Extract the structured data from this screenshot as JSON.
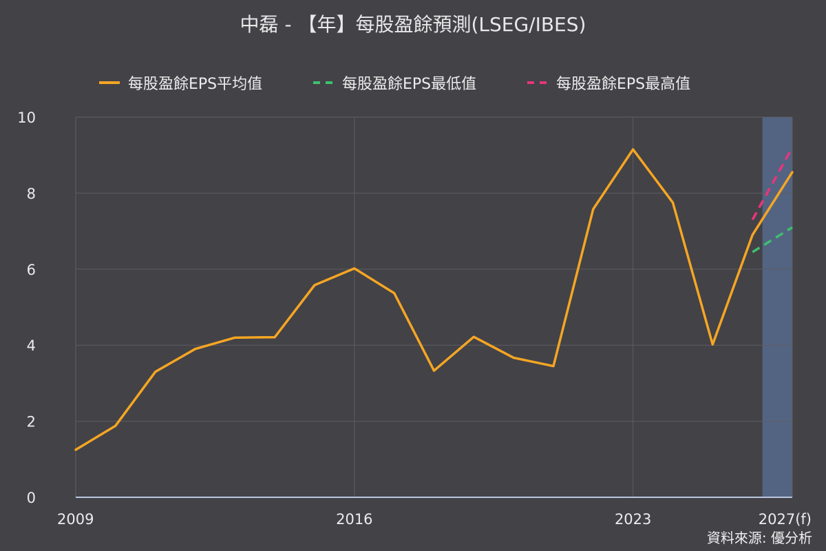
{
  "chart_data": {
    "type": "line",
    "title": "中磊 - 【年】每股盈餘預測(LSEG/IBES)",
    "x_tick_labels": [
      "2009",
      "2016",
      "2023",
      "2027(f)"
    ],
    "y_tick_labels": [
      "0",
      "2",
      "4",
      "6",
      "8",
      "10"
    ],
    "ylim": [
      0,
      10
    ],
    "xlim": [
      2009,
      2027
    ],
    "grid": true,
    "legend_position": "top-center",
    "forecast_region": [
      2026.25,
      2027
    ],
    "series": [
      {
        "name": "每股盈餘EPS平均值",
        "style": "solid",
        "color": "#f5a623",
        "x": [
          2009,
          2010,
          2011,
          2012,
          2013,
          2014,
          2015,
          2016,
          2017,
          2018,
          2019,
          2020,
          2021,
          2022,
          2023,
          2024,
          2025,
          2026,
          2027
        ],
        "values": [
          1.25,
          1.88,
          3.3,
          3.9,
          4.2,
          4.21,
          5.58,
          6.02,
          5.37,
          3.33,
          4.22,
          3.67,
          3.45,
          7.58,
          9.15,
          7.75,
          4.02,
          6.9,
          8.55
        ]
      },
      {
        "name": "每股盈餘EPS最低值",
        "style": "dashed",
        "color": "#3fbf6f",
        "x": [
          2026,
          2027
        ],
        "values": [
          6.45,
          7.1
        ]
      },
      {
        "name": "每股盈餘EPS最高值",
        "style": "dashed",
        "color": "#e8357a",
        "x": [
          2026,
          2027
        ],
        "values": [
          7.3,
          9.2
        ]
      }
    ]
  },
  "colors": {
    "background": "#434247",
    "grid": "#5e5d63",
    "forecast_band": "#536482",
    "axis": "#b9c7e0"
  },
  "source": "資料來源: 優分析"
}
